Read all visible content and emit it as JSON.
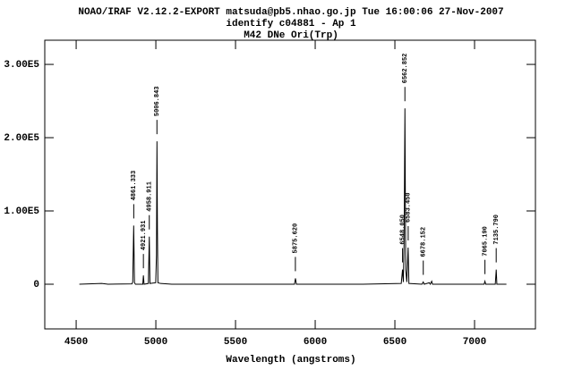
{
  "chart_data": {
    "type": "line",
    "title": "NOAO/IRAF V2.12.2-EXPORT matsuda@pb5.nhao.go.jp Tue 16:00:06 27-Nov-2007",
    "subtitle": "identify c04881 - Ap 1",
    "object": "M42 DNe Ori(Trp)",
    "x_label": "Wavelength (angstroms)",
    "xlim": [
      4303,
      7382
    ],
    "ylim": [
      -61000,
      333000
    ],
    "xticks": [
      4500,
      5000,
      5500,
      6000,
      6500,
      7000
    ],
    "yticks": [
      0,
      {
        "value": 100000,
        "label": "1.00E5"
      },
      {
        "value": 200000,
        "label": "2.00E5"
      },
      {
        "value": 300000,
        "label": "3.00E5"
      }
    ],
    "series": [
      {
        "color": "#000000",
        "x": [
          4520,
          4660,
          4700,
          4850,
          4855,
          4861,
          4866,
          4872,
          4918,
          4922,
          4926,
          4953,
          4959,
          4963,
          4999,
          5004,
          5007,
          5010,
          5013,
          5030,
          5100,
          5500,
          5870,
          5876,
          5882,
          6300,
          6540,
          6548,
          6553,
          6558,
          6563,
          6568,
          6575,
          6583,
          6588,
          6670,
          6678,
          6684,
          6716,
          6722,
          6731,
          6736,
          7060,
          7065,
          7070,
          7130,
          7136,
          7140,
          7200
        ],
        "values": [
          0,
          1000,
          0,
          500,
          3000,
          80000,
          2000,
          0,
          0,
          12000,
          0,
          1000,
          65000,
          1000,
          2000,
          40000,
          195000,
          75000,
          2000,
          1000,
          0,
          0,
          0,
          8000,
          0,
          0,
          1000,
          20000,
          3000,
          60000,
          240000,
          20000,
          3000,
          50000,
          1000,
          0,
          3000,
          0,
          2000,
          0,
          4000,
          0,
          0,
          4000,
          0,
          0,
          20000,
          0,
          0
        ]
      }
    ],
    "annotations": [
      {
        "x": 4861.333,
        "label": "4861.333"
      },
      {
        "x": 4921.931,
        "label": "4921.931"
      },
      {
        "x": 4958.911,
        "label": "4958.911"
      },
      {
        "x": 5006.843,
        "label": "5006.843"
      },
      {
        "x": 5875.62,
        "label": "5875.620"
      },
      {
        "x": 6548.05,
        "label": "6548.050"
      },
      {
        "x": 6562.852,
        "label": "6562.852"
      },
      {
        "x": 6583.45,
        "label": "6583.450"
      },
      {
        "x": 6678.152,
        "label": "6678.152"
      },
      {
        "x": 7065.19,
        "label": "7065.190"
      },
      {
        "x": 7135.79,
        "label": "7135.790"
      }
    ]
  }
}
